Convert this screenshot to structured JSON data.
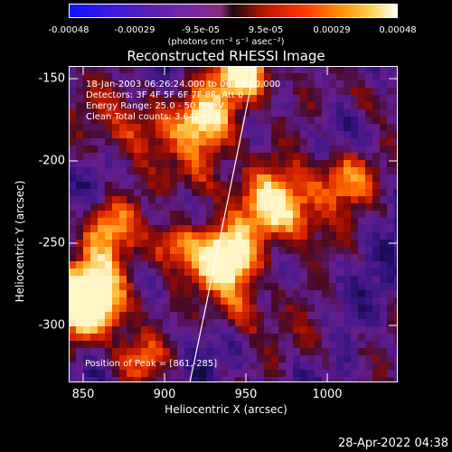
{
  "colorbar": {
    "ticks": [
      "-0.00048",
      "-0.00029",
      "-9.5e-05",
      "9.5e-05",
      "0.00029",
      "0.00048"
    ],
    "units": "(photons cm⁻² s⁻¹ asec⁻²)"
  },
  "title": "Reconstructed RHESSI Image",
  "info": {
    "time_range": "18-Jan-2003 06:26:24.000 to 06:29:20.000",
    "detectors": "Detectors: 3F 4F 5F 6F 7F 8F, Att 0",
    "energy": "Energy Range: 25.0 - 50.0 keV",
    "clean": "Clean    Total counts: 3.64E+03"
  },
  "peak": "Position of Peak = [861,-285]",
  "axes": {
    "xlabel": "Heliocentric X (arcsec)",
    "ylabel": "Heliocentric Y (arcsec)",
    "xticks": [
      "850",
      "900",
      "950",
      "1000"
    ],
    "yticks": [
      "-150",
      "-200",
      "-250",
      "-300"
    ]
  },
  "date_stamp": "28-Apr-2022 04:38",
  "colors": {
    "background": "#000000",
    "axis": "#ffffff",
    "limb": "#ffffff"
  }
}
